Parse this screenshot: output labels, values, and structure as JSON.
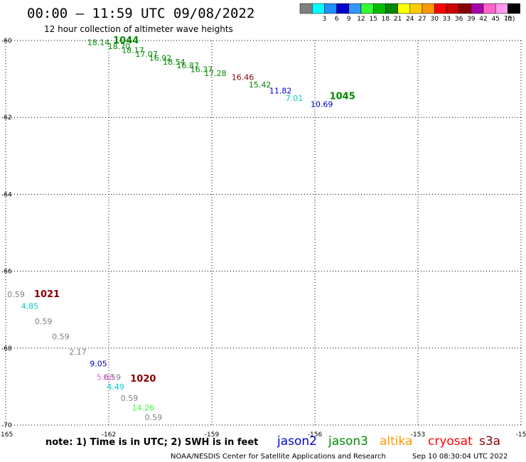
{
  "header": {
    "title": "00:00 – 11:59 UTC 09/08/2022",
    "subtitle": "12 hour collection of altimeter wave heights"
  },
  "color_scale": {
    "bins": [
      {
        "color": "#808080",
        "label": ""
      },
      {
        "color": "#00ffff",
        "label": "3"
      },
      {
        "color": "#1e90ff",
        "label": "6"
      },
      {
        "color": "#0000cd",
        "label": "9"
      },
      {
        "color": "#3399ff",
        "label": "12"
      },
      {
        "color": "#33ff33",
        "label": "15"
      },
      {
        "color": "#00bb00",
        "label": "18"
      },
      {
        "color": "#008800",
        "label": "21"
      },
      {
        "color": "#ffff00",
        "label": "24"
      },
      {
        "color": "#ffcc00",
        "label": "27"
      },
      {
        "color": "#ff9900",
        "label": "30"
      },
      {
        "color": "#ff0000",
        "label": "33"
      },
      {
        "color": "#cc0000",
        "label": "36"
      },
      {
        "color": "#880000",
        "label": "39"
      },
      {
        "color": "#aa00aa",
        "label": "42"
      },
      {
        "color": "#ff66cc",
        "label": "45"
      },
      {
        "color": "#ff99ee",
        "label": "70"
      },
      {
        "color": "#000000",
        "label": ""
      }
    ],
    "unit": "(ft)"
  },
  "map": {
    "lon_range": [
      -165,
      -150
    ],
    "lat_range": [
      -70,
      -60
    ],
    "lon_ticks": [
      {
        "value": -165,
        "label": "-165"
      },
      {
        "value": -162,
        "label": "-162"
      },
      {
        "value": -159,
        "label": "-159"
      },
      {
        "value": -156,
        "label": "-156"
      },
      {
        "value": -153,
        "label": "-153"
      },
      {
        "value": -150,
        "label": "-15"
      }
    ],
    "lat_ticks": [
      {
        "value": -60,
        "label": "-60"
      },
      {
        "value": -62,
        "label": "-62"
      },
      {
        "value": -64,
        "label": "-64"
      },
      {
        "value": -66,
        "label": "-66"
      },
      {
        "value": -68,
        "label": "-68"
      },
      {
        "value": -70,
        "label": "-70"
      }
    ]
  },
  "chart_data": {
    "type": "scatter",
    "x_axis": "longitude",
    "y_axis": "latitude",
    "xlim": [
      -165,
      -150
    ],
    "ylim": [
      -70,
      -60
    ],
    "grid": true,
    "series": [
      {
        "name": "jason3",
        "color": "#008800",
        "points": [
          {
            "lon": -162.3,
            "lat": -60.05,
            "text": "18.14"
          },
          {
            "lon": -161.7,
            "lat": -60.15,
            "text": "18.70"
          },
          {
            "lon": -161.3,
            "lat": -60.25,
            "text": "18.17"
          },
          {
            "lon": -160.9,
            "lat": -60.35,
            "text": "17.07"
          },
          {
            "lon": -160.5,
            "lat": -60.45,
            "text": "16.92"
          },
          {
            "lon": -160.1,
            "lat": -60.55,
            "text": "18.54"
          },
          {
            "lon": -159.7,
            "lat": -60.65,
            "text": "16.87"
          },
          {
            "lon": -159.3,
            "lat": -60.75,
            "text": "16.37"
          },
          {
            "lon": -158.9,
            "lat": -60.85,
            "text": "17.28"
          },
          {
            "lon": -157.6,
            "lat": -61.15,
            "text": "15.42"
          }
        ]
      },
      {
        "name": "cryosat",
        "color": "#880000",
        "points": [
          {
            "lon": -158.1,
            "lat": -60.95,
            "text": "16.46"
          }
        ]
      },
      {
        "name": "jason2",
        "color": "#0000cd",
        "points": [
          {
            "lon": -157.0,
            "lat": -61.3,
            "text": "11.82"
          },
          {
            "lon": -155.8,
            "lat": -61.65,
            "text": "10.69"
          },
          {
            "lon": -162.3,
            "lat": -68.4,
            "text": "9.05"
          }
        ]
      },
      {
        "name": "swh-3-6ft",
        "color": "#00cccc",
        "points": [
          {
            "lon": -156.6,
            "lat": -61.5,
            "text": "7.01"
          },
          {
            "lon": -164.3,
            "lat": -66.9,
            "text": "4.85"
          },
          {
            "lon": -161.8,
            "lat": -69.0,
            "text": "4.49"
          }
        ]
      },
      {
        "name": "swh-0-3ft",
        "color": "#808080",
        "points": [
          {
            "lon": -164.7,
            "lat": -66.6,
            "text": "0.59"
          },
          {
            "lon": -163.9,
            "lat": -67.3,
            "text": "0.59"
          },
          {
            "lon": -163.4,
            "lat": -67.7,
            "text": "0.59"
          },
          {
            "lon": -162.9,
            "lat": -68.1,
            "text": "2.17"
          },
          {
            "lon": -161.9,
            "lat": -68.75,
            "text": "0.59"
          },
          {
            "lon": -161.4,
            "lat": -69.3,
            "text": "0.59"
          },
          {
            "lon": -160.7,
            "lat": -69.8,
            "text": "0.59"
          }
        ]
      },
      {
        "name": "swh-pink",
        "color": "#dd66dd",
        "points": [
          {
            "lon": -162.1,
            "lat": -68.75,
            "text": "5.68"
          }
        ]
      },
      {
        "name": "swh-15-18ft",
        "color": "#33ff33",
        "points": [
          {
            "lon": -161.0,
            "lat": -69.55,
            "text": "14.26"
          }
        ]
      }
    ],
    "pass_labels": [
      {
        "lon": -161.5,
        "lat": -60.0,
        "text": "1044",
        "color": "#008800"
      },
      {
        "lon": -155.2,
        "lat": -61.45,
        "text": "1045",
        "color": "#008800"
      },
      {
        "lon": -163.8,
        "lat": -66.6,
        "text": "1021",
        "color": "#880000"
      },
      {
        "lon": -161.0,
        "lat": -68.8,
        "text": "1020",
        "color": "#880000"
      }
    ]
  },
  "footer": {
    "note": "note: 1) Time is in UTC; 2) SWH is in feet",
    "missions": [
      {
        "label": "jason2",
        "color": "#0000cd"
      },
      {
        "label": "jason3",
        "color": "#008800"
      },
      {
        "label": "altika",
        "color": "#ff9900"
      },
      {
        "label": "cryosat",
        "color": "#ff0000"
      },
      {
        "label": "s3a",
        "color": "#880000"
      }
    ],
    "credit": "NOAA/NESDIS Center for Satellite Applications and Research",
    "timestamp": "Sep 10 08:30:04 UTC 2022"
  }
}
